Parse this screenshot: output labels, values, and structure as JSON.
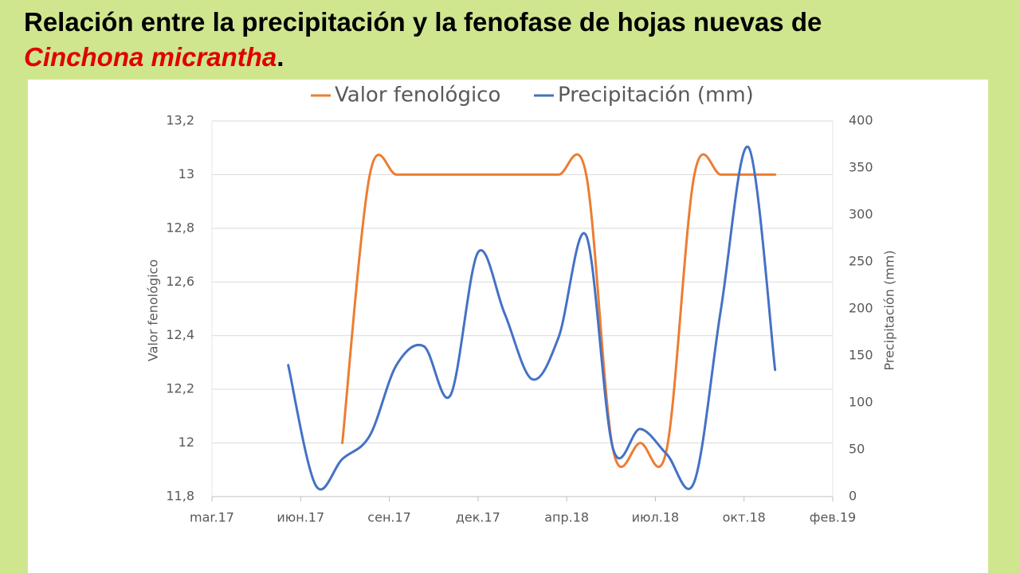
{
  "chart_data": {
    "type": "line",
    "title": [
      "Relación entre la precipitación y la fenofase de hojas nuevas de ",
      "Cinchona micrantha",
      "."
    ],
    "ylabel": "Valor fenológico",
    "y2label": "Precipitación (mm)",
    "x": [
      0.86,
      1.17,
      1.47,
      1.78,
      2.08,
      2.39,
      2.69,
      3.0,
      3.3,
      3.61,
      3.91,
      4.22,
      4.52,
      4.83,
      5.13,
      5.44,
      5.74,
      6.05,
      6.35
    ],
    "xlim": [
      0,
      7
    ],
    "xticks": [
      {
        "value": 0,
        "label": "mar.17"
      },
      {
        "value": 1,
        "label": "июн.17"
      },
      {
        "value": 2,
        "label": "сен.17"
      },
      {
        "value": 3,
        "label": "дек.17"
      },
      {
        "value": 4,
        "label": "апр.18"
      },
      {
        "value": 5,
        "label": "июл.18"
      },
      {
        "value": 6,
        "label": "окт.18"
      },
      {
        "value": 7,
        "label": "фев.19"
      }
    ],
    "ylim": [
      11.8,
      13.2
    ],
    "yticks": [
      {
        "value": 11.8,
        "label": "11,8"
      },
      12,
      {
        "value": 12.2,
        "label": "12,2"
      },
      {
        "value": 12.4,
        "label": "12,4"
      },
      {
        "value": 12.6,
        "label": "12,6"
      },
      {
        "value": 12.8,
        "label": "12,8"
      },
      13,
      {
        "value": 13.2,
        "label": "13,2"
      }
    ],
    "y2lim": [
      0,
      400
    ],
    "y2ticks": [
      0,
      50,
      100,
      150,
      200,
      250,
      300,
      350,
      400
    ],
    "grid": true,
    "legend": "top",
    "series": [
      {
        "name": "Valor fenológico",
        "color": "#ed7d31",
        "values": [
          null,
          null,
          12.0,
          13.0,
          13.0,
          13.0,
          13.0,
          13.0,
          13.0,
          13.0,
          13.0,
          13.0,
          11.98,
          12.0,
          11.98,
          13.0,
          13.0,
          13.0,
          13.0
        ]
      },
      {
        "name": "Precipitación (mm)",
        "color": "#4472c4",
        "axis": "y2",
        "values": [
          140,
          12,
          40,
          65,
          140,
          160,
          108,
          260,
          195,
          125,
          170,
          278,
          52,
          72,
          45,
          16,
          200,
          372,
          135
        ]
      }
    ]
  }
}
